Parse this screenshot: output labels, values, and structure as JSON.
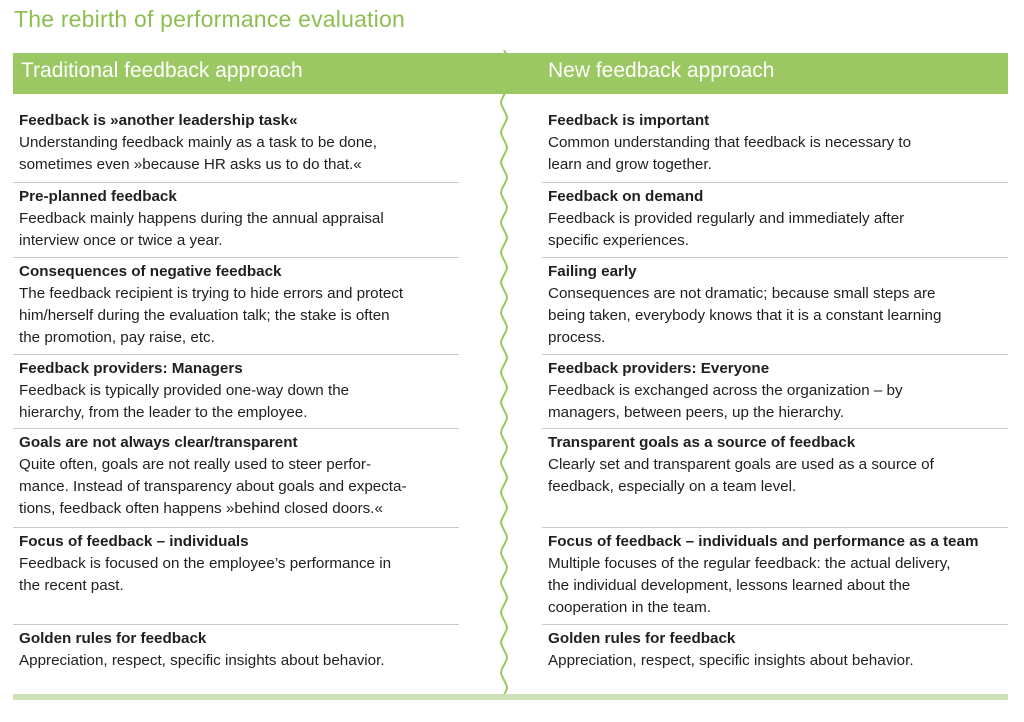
{
  "title": "The rebirth of performance evaluation",
  "columns": {
    "left_header": "Traditional feedback approach",
    "right_header": "New feedback approach"
  },
  "left": [
    {
      "heading": "Feedback is »another leadership task«",
      "body": "Understanding feedback mainly as a task to be done,\nsometimes even »because HR asks us to do that.«"
    },
    {
      "heading": "Pre-planned feedback",
      "body": "Feedback mainly happens during the annual appraisal\ninterview once or twice a year."
    },
    {
      "heading": "Consequences of negative feedback",
      "body": "The feedback recipient is trying to hide errors and protect\nhim/herself during the evaluation talk; the stake is often\nthe promotion, pay raise, etc."
    },
    {
      "heading": "Feedback providers: Managers",
      "body": "Feedback is typically provided one-way down the\nhierarchy, from the leader to the employee."
    },
    {
      "heading": "Goals are not always clear/transparent",
      "body": "Quite often, goals are not really used to steer perfor-\nmance. Instead of transparency about goals and expecta-\ntions, feedback often happens »behind closed doors.«"
    },
    {
      "heading": "Focus of feedback – individuals",
      "body": "Feedback is focused on the employee’s performance in\nthe recent past."
    },
    {
      "heading": "Golden rules for feedback",
      "body": "Appreciation, respect, specific insights about behavior."
    }
  ],
  "right": [
    {
      "heading": "Feedback is important",
      "body": "Common understanding that feedback is necessary to\nlearn and grow together."
    },
    {
      "heading": "Feedback on demand",
      "body": "Feedback is provided regularly and immediately after\nspecific experiences."
    },
    {
      "heading": "Failing early",
      "body": "Consequences are not dramatic; because small steps are\nbeing taken, everybody knows that it is a constant learning\nprocess."
    },
    {
      "heading": "Feedback providers: Everyone",
      "body": "Feedback is exchanged across the organization – by\nmanagers, between peers, up the hierarchy."
    },
    {
      "heading": "Transparent goals as a source of feedback",
      "body": "Clearly set and transparent goals are used as a source of\nfeedback, especially on a team level."
    },
    {
      "heading": "Focus of feedback – individuals and performance as a team",
      "body": "Multiple focuses of the regular feedback: the actual delivery,\nthe individual development, lessons learned about the\ncooperation in the team."
    },
    {
      "heading": "Golden rules for feedback",
      "body": "Appreciation, respect, specific insights about behavior."
    }
  ],
  "colors": {
    "accent": "#9bc862",
    "title": "#8cbf4f",
    "divider": "#c9c9c9",
    "bottom_band": "#cfe1b8"
  }
}
